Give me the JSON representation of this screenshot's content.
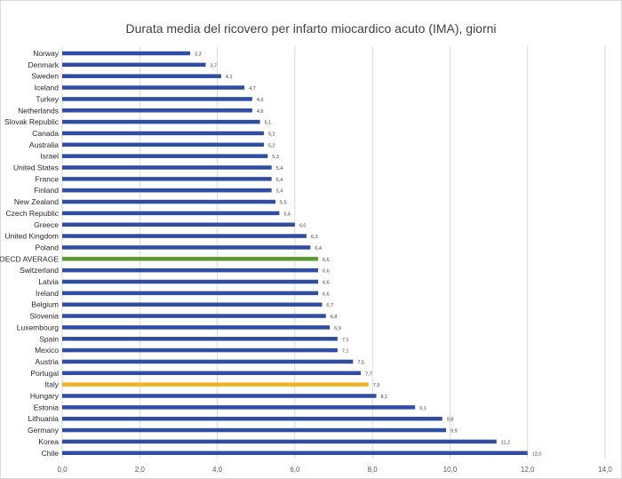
{
  "chart_data": {
    "type": "bar",
    "orientation": "horizontal",
    "title": "Durata media del ricovero per  infarto miocardico acuto (IMA), giorni",
    "categories": [
      "Norway",
      "Denmark",
      "Sweden",
      "Iceland",
      "Turkey",
      "Netherlands",
      "Slovak Republic",
      "Canada",
      "Australia",
      "Israel",
      "United States",
      "France",
      "Finland",
      "New Zealand",
      "Czech Republic",
      "Greece",
      "United Kingdom",
      "Poland",
      "OECD AVERAGE",
      "Switzerland",
      "Latvia",
      "Ireland",
      "Belgium",
      "Slovenia",
      "Luxembourg",
      "Spain",
      "Mexico",
      "Austria",
      "Portugal",
      "Italy",
      "Hungary",
      "Estonia",
      "Lithuania",
      "Germany",
      "Korea",
      "Chile"
    ],
    "values": [
      3.3,
      3.7,
      4.1,
      4.7,
      4.9,
      4.9,
      5.1,
      5.2,
      5.2,
      5.3,
      5.4,
      5.4,
      5.4,
      5.5,
      5.6,
      6.0,
      6.3,
      6.4,
      6.6,
      6.6,
      6.6,
      6.6,
      6.7,
      6.8,
      6.9,
      7.1,
      7.1,
      7.5,
      7.7,
      7.9,
      8.1,
      9.1,
      9.8,
      9.9,
      11.2,
      12.0
    ],
    "value_labels": [
      "3,3",
      "3,7",
      "4,1",
      "4,7",
      "4,9",
      "4,9",
      "5,1",
      "5,2",
      "5,2",
      "5,3",
      "5,4",
      "5,4",
      "5,4",
      "5,5",
      "5,6",
      "6,0",
      "6,3",
      "6,4",
      "6,6",
      "6,6",
      "6,6",
      "6,6",
      "6,7",
      "6,8",
      "6,9",
      "7,1",
      "7,1",
      "7,5",
      "7,7",
      "7,9",
      "8,1",
      "9,1",
      "9,8",
      "9,9",
      "11,2",
      "12,0"
    ],
    "xlim": [
      0,
      14
    ],
    "xticks": [
      0,
      2,
      4,
      6,
      8,
      10,
      12,
      14
    ],
    "xtick_labels": [
      "0,0",
      "2,0",
      "4,0",
      "6,0",
      "8,0",
      "10,0",
      "12,0",
      "14,0"
    ],
    "grid": "vertical",
    "colors": {
      "default": "#2F4EA3",
      "highlight_oecd": "#5A9A2E",
      "highlight_italy": "#F0B323",
      "grid": "#d9d9d9"
    },
    "highlights": {
      "OECD AVERAGE": "highlight_oecd",
      "Italy": "highlight_italy"
    }
  }
}
